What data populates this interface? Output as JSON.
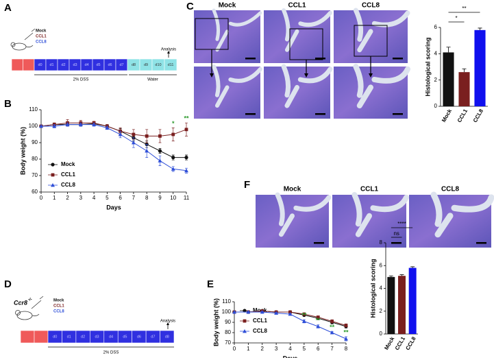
{
  "panel_labels": [
    "A",
    "B",
    "C",
    "D",
    "E",
    "F"
  ],
  "panel_a": {
    "treatments": [
      {
        "name": "Mock",
        "color": "#111111"
      },
      {
        "name": "CCL1",
        "color": "#7a1f1f"
      },
      {
        "name": "CCL8",
        "color": "#2f4fd8"
      }
    ],
    "days": [
      "d0",
      "d1",
      "d2",
      "d3",
      "d4",
      "d5",
      "d6",
      "d7",
      "d8",
      "d9",
      "d10",
      "d11"
    ],
    "phases": [
      "2% DSS",
      "Water"
    ],
    "endpoint": "Analysis"
  },
  "panel_c": {
    "images": [
      "Mock",
      "CCL1",
      "CCL8"
    ]
  },
  "panel_f": {
    "images": [
      "Mock",
      "CCL1",
      "CCL8"
    ]
  },
  "panel_d": {
    "genotype": "Ccr8",
    "genotype_sup": "-/-",
    "treatments": [
      {
        "name": "Mock",
        "color": "#111111"
      },
      {
        "name": "CCL1",
        "color": "#7a1f1f"
      },
      {
        "name": "CCL8",
        "color": "#2f4fd8"
      }
    ],
    "days": [
      "d0",
      "d1",
      "d2",
      "d3",
      "d4",
      "d5",
      "d6",
      "d7",
      "d8"
    ],
    "phase": "2% DSS",
    "endpoint": "Analysis"
  },
  "chart_data": [
    {
      "type": "line",
      "xlabel": "Days",
      "ylabel": "Body weight (%)",
      "x": [
        0,
        1,
        2,
        3,
        4,
        5,
        6,
        7,
        8,
        9,
        10,
        11
      ],
      "xlim": [
        0,
        11
      ],
      "xticks": [
        0,
        1,
        2,
        3,
        4,
        5,
        6,
        7,
        8,
        9,
        10,
        11
      ],
      "ylim": [
        60,
        110
      ],
      "yticks": [
        60,
        70,
        80,
        90,
        100,
        110
      ],
      "series": [
        {
          "name": "Mock",
          "color": "#111111",
          "marker": "circle",
          "values": [
            100,
            101,
            101,
            101,
            101.5,
            100,
            97,
            93,
            89,
            85,
            81,
            81
          ],
          "errors": [
            0,
            1,
            1,
            1,
            1,
            1,
            1.5,
            2,
            2,
            1.5,
            1.5,
            1.5
          ]
        },
        {
          "name": "CCL1",
          "color": "#7a1f1f",
          "marker": "square",
          "values": [
            100,
            101,
            102,
            102,
            102,
            100,
            97,
            95,
            94,
            94,
            95,
            98
          ],
          "errors": [
            0,
            1,
            2,
            1.5,
            1,
            1,
            2,
            3,
            4,
            4,
            4,
            4
          ]
        },
        {
          "name": "CCL8",
          "color": "#2f4fd8",
          "marker": "triangle",
          "values": [
            100,
            100,
            101,
            101,
            101,
            99,
            95,
            90,
            85,
            79,
            74,
            73
          ],
          "errors": [
            0,
            1,
            1,
            1,
            1,
            1,
            2,
            3,
            4,
            3,
            1.5,
            1.5
          ]
        }
      ],
      "annotations": [
        {
          "text": "*",
          "x": 10,
          "color": "#2e9b2e"
        },
        {
          "text": "**",
          "x": 11,
          "color": "#2e9b2e"
        }
      ]
    },
    {
      "type": "bar",
      "ylabel": "Histological scoring",
      "categories": [
        "Mock",
        "CCL1",
        "CCL8"
      ],
      "values": [
        4.1,
        2.6,
        5.8
      ],
      "errors": [
        0.4,
        0.25,
        0.15
      ],
      "colors": [
        "#111111",
        "#7a1f1f",
        "#1010ee"
      ],
      "ylim": [
        0,
        6
      ],
      "yticks": [
        0,
        2,
        4,
        6
      ],
      "significance": [
        {
          "text": "*",
          "pair": [
            "Mock",
            "CCL1"
          ]
        },
        {
          "text": "**",
          "pair": [
            "Mock",
            "CCL8"
          ]
        }
      ]
    },
    {
      "type": "line",
      "xlabel": "Days",
      "ylabel": "Body weight (%)",
      "x": [
        0,
        1,
        2,
        3,
        4,
        5,
        6,
        7,
        8
      ],
      "xlim": [
        0,
        8
      ],
      "xticks": [
        0,
        1,
        2,
        3,
        4,
        5,
        6,
        7,
        8
      ],
      "ylim": [
        70,
        110
      ],
      "yticks": [
        70,
        80,
        90,
        100,
        110
      ],
      "series": [
        {
          "name": "Mock",
          "color": "#111111",
          "marker": "circle",
          "values": [
            100,
            100,
            101,
            100,
            100,
            97,
            94,
            90,
            86
          ],
          "errors": [
            0,
            0.5,
            0.5,
            0.5,
            0.5,
            1,
            1,
            1.5,
            1.5
          ]
        },
        {
          "name": "CCL1",
          "color": "#7a1f1f",
          "marker": "square",
          "values": [
            100,
            100,
            101,
            100,
            100,
            98,
            95,
            91,
            87
          ],
          "errors": [
            0,
            0.5,
            0.5,
            0.5,
            0.5,
            1,
            1,
            1.5,
            1.5
          ]
        },
        {
          "name": "CCL8",
          "color": "#2f4fd8",
          "marker": "triangle",
          "values": [
            100,
            100,
            100,
            99,
            98,
            91,
            86,
            80,
            74
          ],
          "errors": [
            0,
            0.5,
            0.5,
            0.5,
            0.5,
            1.5,
            1.5,
            1,
            2
          ]
        }
      ],
      "annotations": [
        {
          "text": "**",
          "x": 5,
          "color": "#2e9b2e"
        },
        {
          "text": "**",
          "x": 6,
          "color": "#2e9b2e"
        },
        {
          "text": "**",
          "x": 7,
          "color": "#2e9b2e"
        },
        {
          "text": "**",
          "x": 8,
          "color": "#2e9b2e"
        }
      ]
    },
    {
      "type": "bar",
      "ylabel": "Histological scoring",
      "categories": [
        "Mock",
        "CCL1",
        "CCL8"
      ],
      "values": [
        5.0,
        5.1,
        5.8
      ],
      "errors": [
        0.1,
        0.1,
        0.1
      ],
      "colors": [
        "#111111",
        "#7a1f1f",
        "#1010ee"
      ],
      "ylim": [
        0,
        8
      ],
      "yticks": [
        0,
        2,
        4,
        6,
        8
      ],
      "significance": [
        {
          "text": "ns",
          "pair": [
            "Mock",
            "CCL1"
          ]
        },
        {
          "text": "****",
          "pair": [
            "Mock",
            "CCL8"
          ]
        }
      ]
    }
  ]
}
